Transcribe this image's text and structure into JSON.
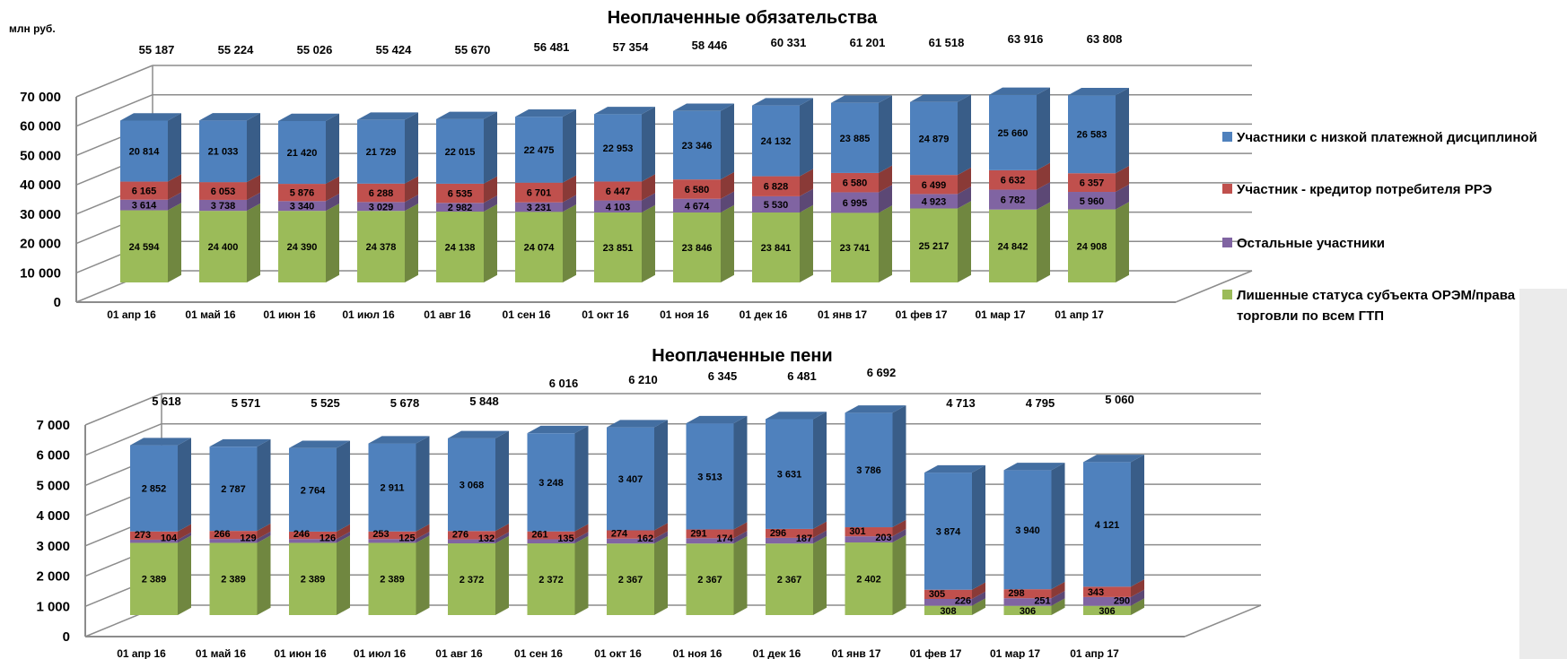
{
  "units_label": "млн руб.",
  "colors": {
    "low_discipline": "#4F81BD",
    "creditor": "#C0504D",
    "others": "#8064A2",
    "deprived": "#9BBB59",
    "grid": "#8c8c8c",
    "side_panel": "#ebebeb"
  },
  "legend": [
    {
      "key": "low_discipline",
      "lines": [
        "Участники с низкой платежной дисциплиной"
      ]
    },
    {
      "key": "creditor",
      "lines": [
        "Участник - кредитор потребителя РРЭ"
      ]
    },
    {
      "key": "others",
      "lines": [
        "Остальные участники"
      ]
    },
    {
      "key": "deprived",
      "lines": [
        "Лишенные статуса субъекта ОРЭМ/права",
        "торговли по всем ГТП"
      ]
    }
  ],
  "chart_data": [
    {
      "type": "bar",
      "stacked": true,
      "title": "Неоплаченные обязательства",
      "categories": [
        "01 апр 16",
        "01 май 16",
        "01 июн 16",
        "01 июл 16",
        "01 авг 16",
        "01 сен 16",
        "01 окт 16",
        "01 ноя 16",
        "01 дек 16",
        "01 янв 17",
        "01 фев 17",
        "01 мар 17",
        "01 апр 17"
      ],
      "yticks": [
        "0",
        "10 000",
        "20 000",
        "30 000",
        "40 000",
        "50 000",
        "60 000",
        "70 000"
      ],
      "ylim": [
        0,
        70000
      ],
      "totals": [
        "55 187",
        "55 224",
        "55 026",
        "55 424",
        "55 670",
        "56 481",
        "57 354",
        "58 446",
        "60 331",
        "61 201",
        "61 518",
        "63 916",
        "63 808"
      ],
      "series": [
        {
          "key": "deprived",
          "values": [
            24594,
            24400,
            24390,
            24378,
            24138,
            24074,
            23851,
            23846,
            23841,
            23741,
            25217,
            24842,
            24908
          ],
          "labels": [
            "24 594",
            "24 400",
            "24 390",
            "24 378",
            "24 138",
            "24 074",
            "23 851",
            "23 846",
            "23 841",
            "23 741",
            "25 217",
            "24 842",
            "24 908"
          ]
        },
        {
          "key": "others",
          "values": [
            3614,
            3738,
            3340,
            3029,
            2982,
            3231,
            4103,
            4674,
            5530,
            6995,
            4923,
            6782,
            5960
          ],
          "labels": [
            "3 614",
            "3 738",
            "3 340",
            "3 029",
            "2 982",
            "3 231",
            "4 103",
            "4 674",
            "5 530",
            "6 995",
            "4 923",
            "6 782",
            "5 960"
          ]
        },
        {
          "key": "creditor",
          "values": [
            6165,
            6053,
            5876,
            6288,
            6535,
            6701,
            6447,
            6580,
            6828,
            6580,
            6499,
            6632,
            6357
          ],
          "labels": [
            "6 165",
            "6 053",
            "5 876",
            "6 288",
            "6 535",
            "6 701",
            "6 447",
            "6 580",
            "6 828",
            "6 580",
            "6 499",
            "6 632",
            "6 357"
          ]
        },
        {
          "key": "low_discipline",
          "values": [
            20814,
            21033,
            21420,
            21729,
            22015,
            22475,
            22953,
            23346,
            24132,
            23885,
            24879,
            25660,
            26583
          ],
          "labels": [
            "20 814",
            "21 033",
            "21 420",
            "21 729",
            "22 015",
            "22 475",
            "22 953",
            "23 346",
            "24 132",
            "23 885",
            "24 879",
            "25 660",
            "26 583"
          ]
        }
      ]
    },
    {
      "type": "bar",
      "stacked": true,
      "title": "Неоплаченные пени",
      "categories": [
        "01 апр 16",
        "01 май 16",
        "01 июн 16",
        "01 июл 16",
        "01 авг 16",
        "01 сен 16",
        "01 окт 16",
        "01 ноя 16",
        "01 дек 16",
        "01 янв 17",
        "01 фев 17",
        "01 мар 17",
        "01 апр 17"
      ],
      "yticks": [
        "0",
        "1 000",
        "2 000",
        "3 000",
        "4 000",
        "5 000",
        "6 000",
        "7 000"
      ],
      "ylim": [
        0,
        7000
      ],
      "totals": [
        "5 618",
        "5 571",
        "5 525",
        "5 678",
        "5 848",
        "6 016",
        "6 210",
        "6 345",
        "6 481",
        "6 692",
        "4 713",
        "4 795",
        "5 060"
      ],
      "series": [
        {
          "key": "deprived",
          "values": [
            2389,
            2389,
            2389,
            2389,
            2372,
            2372,
            2367,
            2367,
            2367,
            2402,
            308,
            306,
            306
          ],
          "labels": [
            "2 389",
            "2 389",
            "2 389",
            "2 389",
            "2 372",
            "2 372",
            "2 367",
            "2 367",
            "2 367",
            "2 402",
            "308",
            "306",
            "306"
          ]
        },
        {
          "key": "others",
          "values": [
            104,
            129,
            126,
            125,
            132,
            135,
            162,
            174,
            187,
            203,
            226,
            251,
            290
          ],
          "labels": [
            "104",
            "129",
            "126",
            "125",
            "132",
            "135",
            "162",
            "174",
            "187",
            "203",
            "226",
            "251",
            "290"
          ]
        },
        {
          "key": "creditor",
          "values": [
            273,
            266,
            246,
            253,
            276,
            261,
            274,
            291,
            296,
            301,
            305,
            298,
            343
          ],
          "labels": [
            "273",
            "266",
            "246",
            "253",
            "276",
            "261",
            "274",
            "291",
            "296",
            "301",
            "305",
            "298",
            "343"
          ]
        },
        {
          "key": "low_discipline",
          "values": [
            2852,
            2787,
            2764,
            2911,
            3068,
            3248,
            3407,
            3513,
            3631,
            3786,
            3874,
            3940,
            4121
          ],
          "labels": [
            "2 852",
            "2 787",
            "2 764",
            "2 911",
            "3 068",
            "3 248",
            "3 407",
            "3 513",
            "3 631",
            "3 786",
            "3 874",
            "3 940",
            "4 121"
          ]
        }
      ]
    }
  ]
}
